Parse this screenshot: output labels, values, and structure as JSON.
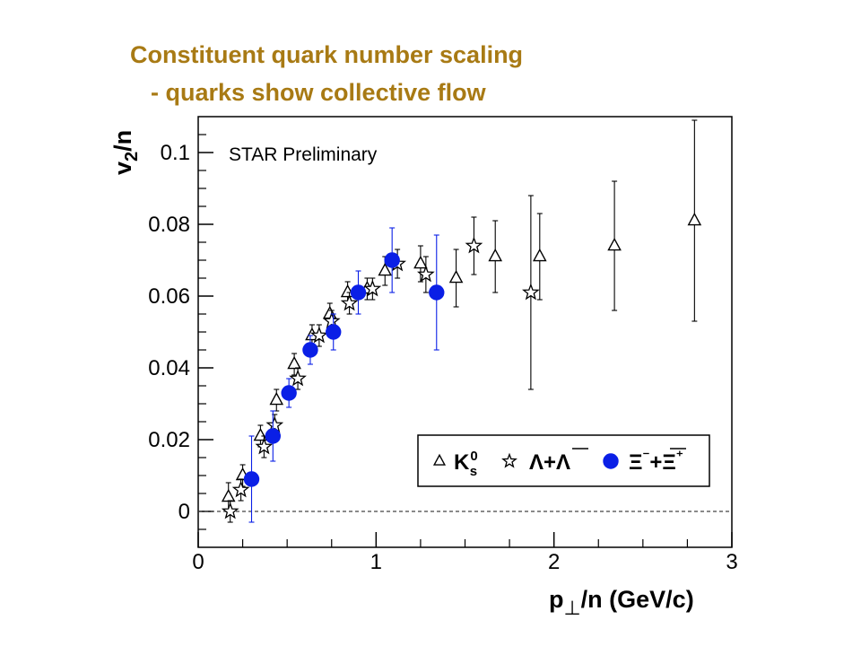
{
  "slide": {
    "title_line1": "Constituent quark number scaling",
    "title_line2": "- quarks show collective flow",
    "title_color": "#a87a14"
  },
  "chart_data": {
    "type": "scatter",
    "annotation": "STAR Preliminary",
    "xlabel": "p⊥/n (GeV/c)",
    "ylabel": "v2/n",
    "xlim": [
      0,
      3
    ],
    "ylim": [
      -0.01,
      0.11
    ],
    "x_ticks": [
      "0",
      "1",
      "2",
      "3"
    ],
    "y_ticks": [
      "0",
      "0.02",
      "0.04",
      "0.06",
      "0.08",
      "0.1"
    ],
    "reference_line_y": 0,
    "legend_placement": "lower-right",
    "series": [
      {
        "name": "K0s",
        "marker": "triangle",
        "color": "#000000",
        "points": [
          {
            "x": 0.17,
            "y": 0.004,
            "err": 0.004
          },
          {
            "x": 0.25,
            "y": 0.01,
            "err": 0.003
          },
          {
            "x": 0.35,
            "y": 0.021,
            "err": 0.003
          },
          {
            "x": 0.44,
            "y": 0.031,
            "err": 0.003
          },
          {
            "x": 0.54,
            "y": 0.041,
            "err": 0.003
          },
          {
            "x": 0.64,
            "y": 0.049,
            "err": 0.003
          },
          {
            "x": 0.74,
            "y": 0.055,
            "err": 0.003
          },
          {
            "x": 0.84,
            "y": 0.061,
            "err": 0.003
          },
          {
            "x": 0.95,
            "y": 0.062,
            "err": 0.003
          },
          {
            "x": 1.05,
            "y": 0.067,
            "err": 0.004
          },
          {
            "x": 1.25,
            "y": 0.069,
            "err": 0.005
          },
          {
            "x": 1.45,
            "y": 0.065,
            "err": 0.008
          },
          {
            "x": 1.67,
            "y": 0.071,
            "err": 0.01
          },
          {
            "x": 1.92,
            "y": 0.071,
            "err": 0.012
          },
          {
            "x": 2.34,
            "y": 0.074,
            "err": 0.018
          },
          {
            "x": 2.79,
            "y": 0.081,
            "err": 0.028
          }
        ]
      },
      {
        "name": "Λ+Λ̄",
        "marker": "star",
        "color": "#000000",
        "points": [
          {
            "x": 0.18,
            "y": 0.0,
            "err": 0.003
          },
          {
            "x": 0.24,
            "y": 0.006,
            "err": 0.003
          },
          {
            "x": 0.37,
            "y": 0.018,
            "err": 0.003
          },
          {
            "x": 0.43,
            "y": 0.024,
            "err": 0.003
          },
          {
            "x": 0.56,
            "y": 0.037,
            "err": 0.003
          },
          {
            "x": 0.68,
            "y": 0.049,
            "err": 0.003
          },
          {
            "x": 0.75,
            "y": 0.053,
            "err": 0.003
          },
          {
            "x": 0.85,
            "y": 0.058,
            "err": 0.003
          },
          {
            "x": 0.98,
            "y": 0.062,
            "err": 0.003
          },
          {
            "x": 1.12,
            "y": 0.069,
            "err": 0.004
          },
          {
            "x": 1.28,
            "y": 0.066,
            "err": 0.005
          },
          {
            "x": 1.55,
            "y": 0.074,
            "err": 0.008
          },
          {
            "x": 1.87,
            "y": 0.061,
            "err": 0.027
          }
        ]
      },
      {
        "name": "Ξ⁻+Ξ̄⁺",
        "marker": "circle",
        "color": "#0a1fe6",
        "points": [
          {
            "x": 0.3,
            "y": 0.009,
            "err": 0.012
          },
          {
            "x": 0.42,
            "y": 0.021,
            "err": 0.007
          },
          {
            "x": 0.51,
            "y": 0.033,
            "err": 0.004
          },
          {
            "x": 0.63,
            "y": 0.045,
            "err": 0.004
          },
          {
            "x": 0.76,
            "y": 0.05,
            "err": 0.005
          },
          {
            "x": 0.9,
            "y": 0.061,
            "err": 0.006
          },
          {
            "x": 1.09,
            "y": 0.07,
            "err": 0.009
          },
          {
            "x": 1.34,
            "y": 0.061,
            "err": 0.016
          }
        ]
      }
    ]
  }
}
